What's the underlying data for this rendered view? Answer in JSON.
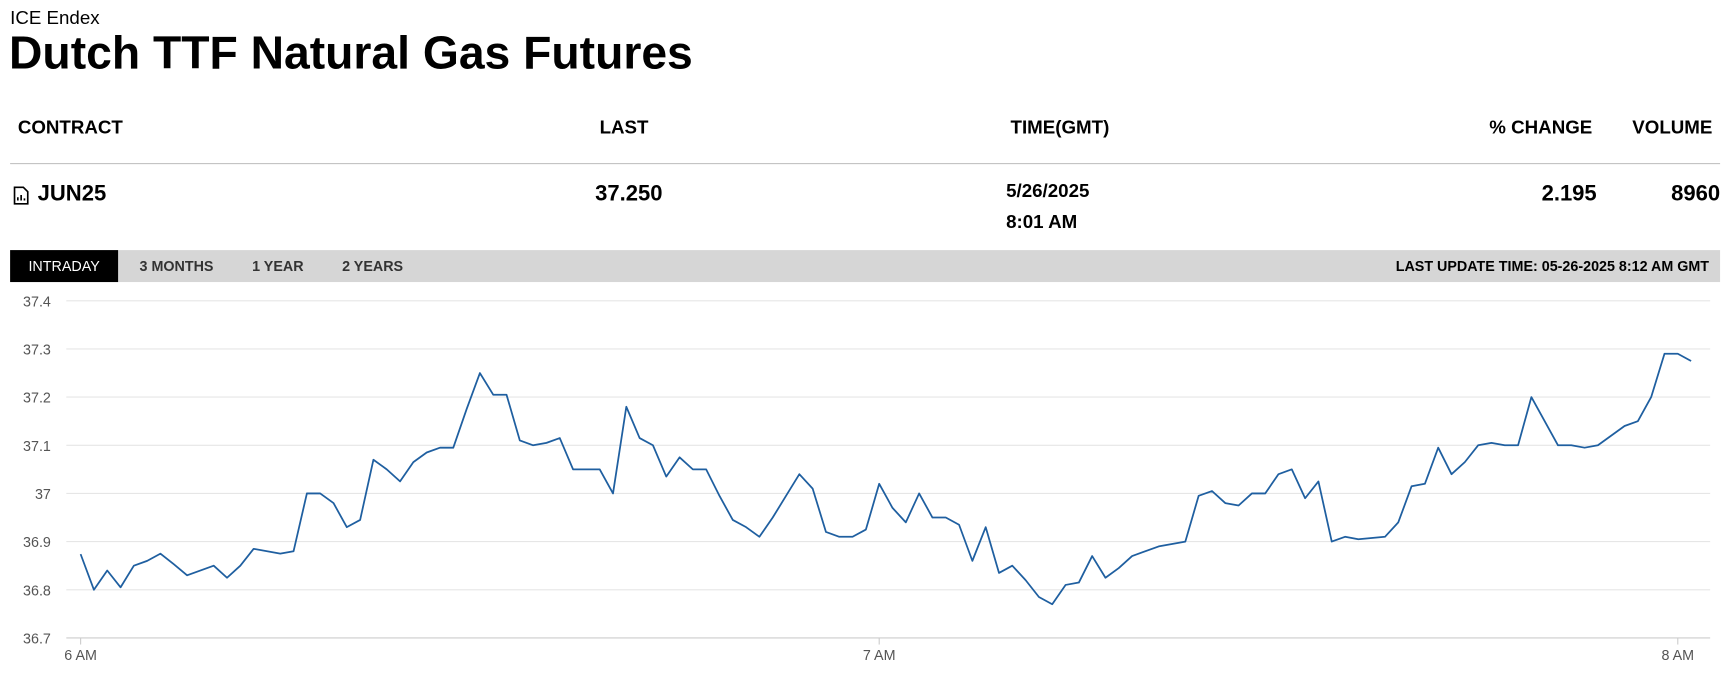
{
  "header": {
    "exchange": "ICE Endex",
    "title": "Dutch TTF Natural Gas Futures"
  },
  "table": {
    "headers": [
      "CONTRACT",
      "LAST",
      "TIME(GMT)",
      "% CHANGE",
      "VOLUME"
    ],
    "rows": [
      {
        "contract": "JUN25",
        "last": "37.250",
        "date": "5/26/2025",
        "time": "8:01 AM",
        "change": "2.195",
        "volume": "8960"
      }
    ]
  },
  "tabs": [
    "INTRADAY",
    "3 MONTHS",
    "1 YEAR",
    "2 YEARS"
  ],
  "last_update": "LAST UPDATE TIME: 05-26-2025 8:12 AM GMT",
  "chart_data": {
    "type": "line",
    "color": "#1f5fa0",
    "grid": true,
    "x": [
      360,
      361,
      362,
      363,
      364,
      365,
      366,
      367,
      368,
      370,
      371,
      372,
      373,
      375,
      376,
      377,
      378,
      379,
      380,
      381,
      382,
      383,
      384,
      385,
      386,
      387,
      388,
      389,
      390,
      391,
      392,
      393,
      394,
      395,
      396,
      397,
      398,
      399,
      400,
      401,
      402,
      403,
      404,
      405,
      406,
      407,
      408,
      409,
      410,
      411,
      412,
      413,
      414,
      415,
      416,
      417,
      418,
      419,
      420,
      421,
      422,
      423,
      424,
      425,
      426,
      427,
      428,
      429,
      430,
      431,
      432,
      433,
      434,
      435,
      436,
      437,
      438,
      439,
      441,
      443,
      444,
      445,
      446,
      447,
      448,
      449,
      450,
      451,
      452,
      453,
      454,
      455,
      456,
      458,
      459,
      460,
      461,
      462,
      463,
      464,
      465,
      466,
      467,
      468,
      469,
      471,
      472,
      473,
      474,
      476,
      477,
      478,
      479,
      480,
      481
    ],
    "values": [
      36.874,
      36.8,
      36.84,
      36.805,
      36.85,
      36.86,
      36.875,
      36.853,
      36.83,
      36.85,
      36.825,
      36.85,
      36.885,
      36.875,
      36.88,
      37.0,
      37.0,
      36.98,
      36.93,
      36.945,
      37.07,
      37.05,
      37.025,
      37.065,
      37.085,
      37.095,
      37.095,
      37.175,
      37.25,
      37.205,
      37.205,
      37.11,
      37.1,
      37.105,
      37.115,
      37.05,
      37.05,
      37.05,
      37.0,
      37.18,
      37.115,
      37.1,
      37.035,
      37.075,
      37.05,
      37.05,
      36.995,
      36.945,
      36.93,
      36.91,
      36.95,
      36.995,
      37.04,
      37.01,
      36.92,
      36.91,
      36.91,
      36.925,
      37.02,
      36.97,
      36.94,
      37.0,
      36.95,
      36.95,
      36.935,
      36.86,
      36.93,
      36.835,
      36.85,
      36.82,
      36.785,
      36.77,
      36.81,
      36.815,
      36.87,
      36.825,
      36.845,
      36.87,
      36.89,
      36.9,
      36.995,
      37.005,
      36.98,
      36.975,
      37.0,
      37.0,
      37.04,
      37.05,
      36.99,
      37.025,
      36.9,
      36.91,
      36.905,
      36.91,
      36.94,
      37.015,
      37.02,
      37.095,
      37.04,
      37.065,
      37.1,
      37.105,
      37.1,
      37.1,
      37.2,
      37.1,
      37.1,
      37.095,
      37.1,
      37.14,
      37.15,
      37.2,
      37.29,
      37.29,
      37.275
    ],
    "xlim": [
      359,
      482.3
    ],
    "xticks": [
      {
        "value": 360,
        "label": "6 AM"
      },
      {
        "value": 420,
        "label": "7 AM"
      },
      {
        "value": 480,
        "label": "8 AM"
      }
    ],
    "ylim": [
      36.7,
      37.4
    ],
    "yticks": [
      36.7,
      36.8,
      36.9,
      37,
      37.1,
      37.2,
      37.3,
      37.4
    ]
  }
}
